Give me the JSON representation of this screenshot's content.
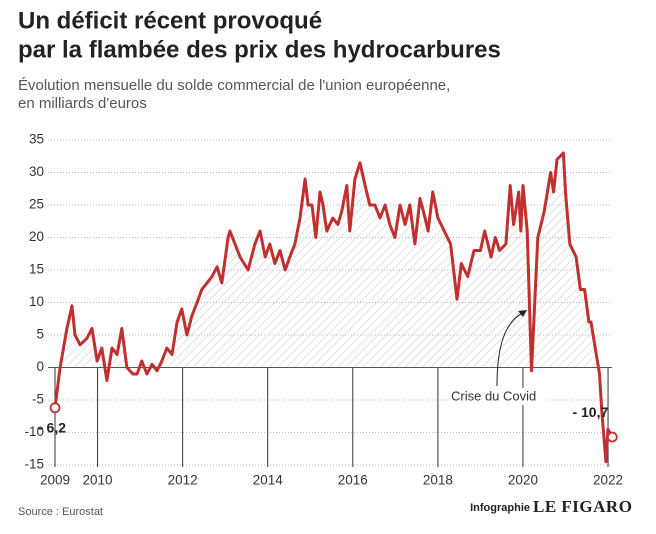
{
  "chart_data": {
    "type": "line",
    "title": [
      "Un déficit récent provoqué",
      "par la flambée des prix des hydrocarbures"
    ],
    "subtitle": [
      "Évolution mensuelle du solde commercial de l'union européenne,",
      "en milliards d'euros"
    ],
    "series": [
      {
        "name": "Solde commercial",
        "color": "#c0302e",
        "x": [
          2009.0,
          2009.12,
          2009.28,
          2009.4,
          2009.47,
          2009.59,
          2009.75,
          2009.87,
          2009.99,
          2010.1,
          2010.22,
          2010.34,
          2010.46,
          2010.57,
          2010.69,
          2010.83,
          2010.93,
          2011.04,
          2011.16,
          2011.28,
          2011.4,
          2011.51,
          2011.63,
          2011.75,
          2011.87,
          2011.98,
          2012.1,
          2012.22,
          2012.34,
          2012.45,
          2012.57,
          2012.69,
          2012.81,
          2012.92,
          2013.07,
          2013.11,
          2013.35,
          2013.54,
          2013.7,
          2013.82,
          2013.94,
          2014.05,
          2014.17,
          2014.29,
          2014.41,
          2014.52,
          2014.64,
          2014.76,
          2014.88,
          2014.95,
          2015.04,
          2015.13,
          2015.23,
          2015.3,
          2015.39,
          2015.53,
          2015.65,
          2015.74,
          2015.86,
          2015.93,
          2016.05,
          2016.17,
          2016.29,
          2016.4,
          2016.52,
          2016.64,
          2016.76,
          2016.87,
          2016.99,
          2017.11,
          2017.23,
          2017.34,
          2017.46,
          2017.58,
          2017.7,
          2017.77,
          2017.88,
          2018.0,
          2018.3,
          2018.45,
          2018.55,
          2018.7,
          2018.85,
          2019.0,
          2019.1,
          2019.25,
          2019.35,
          2019.45,
          2019.6,
          2019.7,
          2019.78,
          2019.9,
          2019.95,
          2020.0,
          2020.1,
          2020.2,
          2020.35,
          2020.5,
          2020.65,
          2020.72,
          2020.8,
          2020.95,
          2021.0,
          2021.1,
          2021.25,
          2021.35,
          2021.45,
          2021.55,
          2021.6,
          2021.8,
          2021.85,
          2021.95,
          2022.0,
          2022.1
        ],
        "values": [
          -6.2,
          0,
          6,
          9.5,
          5,
          3.5,
          4.5,
          6,
          1,
          3,
          -2,
          3,
          2,
          6,
          0,
          -1,
          -1,
          1,
          -1,
          0.5,
          -0.5,
          1,
          3,
          2,
          7,
          9,
          5,
          8,
          10,
          12,
          13,
          14,
          15.5,
          13,
          20,
          21,
          17,
          15,
          19,
          21,
          17,
          19,
          16,
          18,
          15,
          17,
          19,
          23,
          29,
          25,
          25,
          20,
          27,
          25,
          21,
          23,
          22,
          24,
          28,
          21,
          29,
          31.5,
          28,
          25,
          25,
          23,
          25,
          22,
          20,
          25,
          22,
          25,
          19,
          26,
          23,
          21,
          27,
          23,
          19,
          10.5,
          16,
          14,
          18,
          18,
          21,
          17,
          20,
          18,
          19,
          28,
          22,
          27,
          21,
          28,
          21,
          -0.5,
          20,
          24,
          30,
          27,
          32,
          33,
          27,
          19,
          17,
          12,
          12,
          7,
          7,
          -1,
          -6.5,
          -14.5,
          -9.5,
          -10.7
        ]
      }
    ],
    "xlim": [
      2008.8,
      2022.3
    ],
    "xticks": [
      2009,
      2010,
      2012,
      2014,
      2016,
      2018,
      2020,
      2022
    ],
    "ylim": [
      -15,
      35
    ],
    "yticks": [
      -15,
      -10,
      -5,
      0,
      5,
      10,
      15,
      20,
      25,
      30,
      35
    ],
    "grid": true,
    "annotations": {
      "start": "- 6,2",
      "end": "- 10,7",
      "covid": "Crise du Covid"
    },
    "source": "Source : Eurostat",
    "credit": "Infographie",
    "brand": "LE FIGARO"
  }
}
